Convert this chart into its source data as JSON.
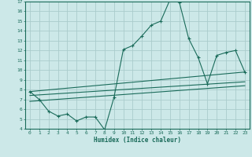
{
  "background_color": "#cce8e8",
  "grid_color": "#aacccc",
  "line_color": "#1a6b5a",
  "xlabel": "Humidex (Indice chaleur)",
  "xlim": [
    -0.5,
    23.5
  ],
  "ylim": [
    4,
    17
  ],
  "xticks": [
    0,
    1,
    2,
    3,
    4,
    5,
    6,
    7,
    8,
    9,
    10,
    11,
    12,
    13,
    14,
    15,
    16,
    17,
    18,
    19,
    20,
    21,
    22,
    23
  ],
  "yticks": [
    4,
    5,
    6,
    7,
    8,
    9,
    10,
    11,
    12,
    13,
    14,
    15,
    16,
    17
  ],
  "line1_x": [
    0,
    1,
    2,
    3,
    4,
    5,
    6,
    7,
    8,
    9,
    10,
    11,
    12,
    13,
    14,
    15,
    16,
    17,
    18,
    19,
    20,
    21,
    22,
    23
  ],
  "line1_y": [
    7.8,
    7.0,
    5.8,
    5.3,
    5.5,
    4.8,
    5.2,
    5.2,
    3.9,
    7.2,
    12.1,
    12.5,
    13.5,
    14.6,
    15.0,
    17.2,
    16.9,
    13.2,
    11.3,
    8.6,
    11.5,
    11.8,
    12.0,
    9.8
  ],
  "line2_x": [
    0,
    23
  ],
  "line2_y": [
    7.8,
    9.8
  ],
  "line3_x": [
    0,
    23
  ],
  "line3_y": [
    7.4,
    8.8
  ],
  "line4_x": [
    0,
    23
  ],
  "line4_y": [
    6.8,
    8.4
  ]
}
